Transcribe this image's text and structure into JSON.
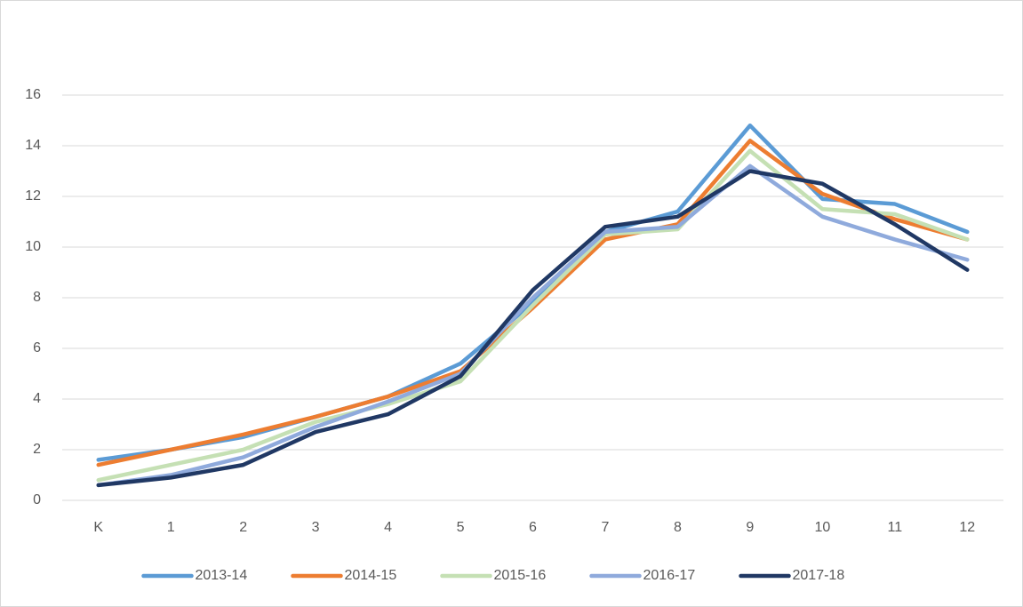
{
  "chart_data": {
    "type": "line",
    "categories": [
      "K",
      "1",
      "2",
      "3",
      "4",
      "5",
      "6",
      "7",
      "8",
      "9",
      "10",
      "11",
      "12"
    ],
    "series": [
      {
        "name": "2013-14",
        "color": "#5b9bd5",
        "values": [
          1.6,
          2.0,
          2.5,
          3.3,
          4.1,
          5.4,
          7.8,
          10.6,
          11.4,
          14.8,
          11.9,
          11.7,
          10.6
        ]
      },
      {
        "name": "2014-15",
        "color": "#ed7d31",
        "values": [
          1.4,
          2.0,
          2.6,
          3.3,
          4.1,
          5.1,
          7.6,
          10.3,
          10.9,
          14.2,
          12.1,
          11.1,
          10.3
        ]
      },
      {
        "name": "2015-16",
        "color": "#c5e0b4",
        "values": [
          0.8,
          1.4,
          2.0,
          3.1,
          3.8,
          4.7,
          7.7,
          10.5,
          10.7,
          13.8,
          11.5,
          11.3,
          10.3
        ]
      },
      {
        "name": "2016-17",
        "color": "#8faadc",
        "values": [
          0.6,
          1.0,
          1.7,
          2.9,
          3.9,
          5.0,
          8.0,
          10.6,
          10.8,
          13.2,
          11.2,
          10.3,
          9.5
        ]
      },
      {
        "name": "2017-18",
        "color": "#203864",
        "values": [
          0.6,
          0.9,
          1.4,
          2.7,
          3.4,
          4.9,
          8.3,
          10.8,
          11.2,
          13.0,
          12.5,
          10.9,
          9.1
        ]
      }
    ],
    "ylim": [
      0,
      16
    ],
    "yticks": [
      0,
      2,
      4,
      6,
      8,
      10,
      12,
      14,
      16
    ],
    "grid": true,
    "legend": "bottom"
  }
}
